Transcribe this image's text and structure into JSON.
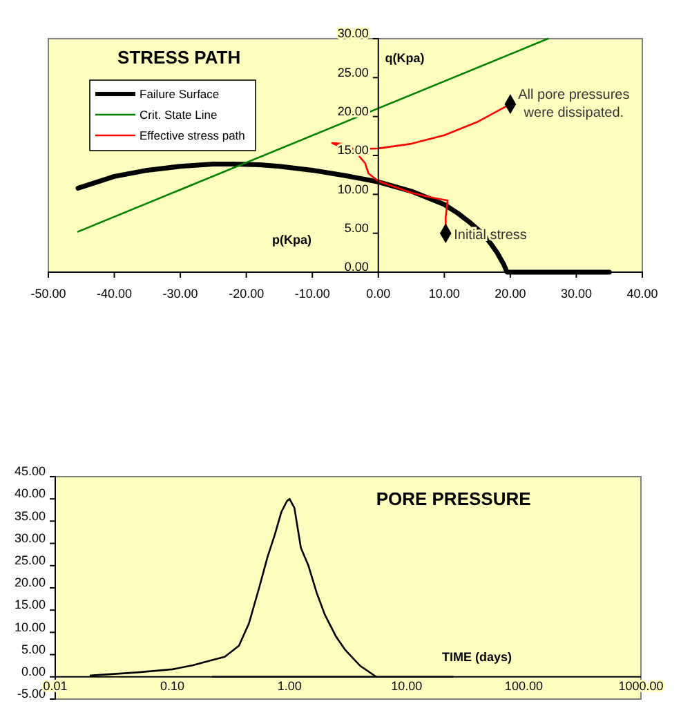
{
  "chart_data": [
    {
      "type": "line",
      "title": "STRESS PATH",
      "xlabel": "p(Kpa)",
      "ylabel": "q(Kpa)",
      "legend": "top left",
      "xlim": [
        -50,
        40
      ],
      "ylim": [
        0,
        30
      ],
      "xticks": [
        {
          "value": -50,
          "label": "-50.00"
        },
        {
          "value": -40,
          "label": "-40.00"
        },
        {
          "value": -30,
          "label": "-30.00"
        },
        {
          "value": -20,
          "label": "-20.00"
        },
        {
          "value": -10,
          "label": "-10.00"
        },
        {
          "value": 0,
          "label": "0.00"
        },
        {
          "value": 10,
          "label": "10.00"
        },
        {
          "value": 20,
          "label": "20.00"
        },
        {
          "value": 30,
          "label": "30.00"
        },
        {
          "value": 40,
          "label": "40.00"
        }
      ],
      "yticks": [
        {
          "value": 0,
          "label": "0.00"
        },
        {
          "value": 5,
          "label": "5.00"
        },
        {
          "value": 10,
          "label": "10.00"
        },
        {
          "value": 15,
          "label": "15.00"
        },
        {
          "value": 20,
          "label": "20.00"
        },
        {
          "value": 25,
          "label": "25.00"
        },
        {
          "value": 30,
          "label": "30.00"
        }
      ],
      "series": [
        {
          "name": "Failure Surface",
          "color": "#000000",
          "x": [
            -45.5,
            -40,
            -35,
            -30,
            -25,
            -22,
            -18,
            -15,
            -10,
            -5,
            0,
            5,
            10,
            12,
            14,
            16,
            17,
            18,
            19,
            19.5,
            25,
            30,
            35
          ],
          "values": [
            10.8,
            12.3,
            13.1,
            13.6,
            13.9,
            13.9,
            13.8,
            13.6,
            13.1,
            12.4,
            11.6,
            10.4,
            8.7,
            7.6,
            6.3,
            4.8,
            3.7,
            2.5,
            1.0,
            0,
            0,
            0,
            0
          ]
        },
        {
          "name": "Crit. State Line",
          "color": "#008000",
          "x": [
            -45.5,
            25.7
          ],
          "values": [
            5.2,
            30
          ]
        },
        {
          "name": "Effective stress path",
          "color": "#ff0000",
          "x": [
            10.2,
            10.2,
            10.5,
            8,
            5,
            3,
            0,
            -1.5,
            -2,
            -3,
            -3.5,
            -4,
            -6,
            -7,
            -5.5,
            -4,
            0,
            5,
            10,
            15,
            20
          ],
          "values": [
            5,
            7,
            9.2,
            9.6,
            10.2,
            10.8,
            11.7,
            12.7,
            14,
            15,
            15.5,
            16,
            16.2,
            16.6,
            16.5,
            15.8,
            15.9,
            16.5,
            17.6,
            19.3,
            21.6
          ]
        },
        {
          "type": "scatter",
          "marker": "diamond",
          "color": "#000000",
          "x": [
            10.2,
            20
          ],
          "values": [
            5,
            21.6
          ]
        }
      ],
      "annotations": [
        {
          "text": "Initial stress",
          "x": 10.2,
          "y": 5
        },
        {
          "text": "All pore pressures were dissipated.",
          "x": 20,
          "y": 21.6
        }
      ]
    },
    {
      "type": "line",
      "title": "PORE PRESSURE",
      "xlabel": "TIME (days)",
      "log": "x",
      "xlim": [
        0.01,
        1000
      ],
      "ylim": [
        -5,
        45
      ],
      "xticks": [
        {
          "value": 0.01,
          "label": "0.01"
        },
        {
          "value": 0.1,
          "label": "0.10"
        },
        {
          "value": 1,
          "label": "1.00"
        },
        {
          "value": 10,
          "label": "10.00"
        },
        {
          "value": 100,
          "label": "100.00"
        },
        {
          "value": 1000,
          "label": "1000.00"
        }
      ],
      "yticks": [
        {
          "value": -5,
          "label": "-5.00"
        },
        {
          "value": 0,
          "label": "0.00"
        },
        {
          "value": 5,
          "label": "5.00"
        },
        {
          "value": 10,
          "label": "10.00"
        },
        {
          "value": 15,
          "label": "15.00"
        },
        {
          "value": 20,
          "label": "20.00"
        },
        {
          "value": 25,
          "label": "25.00"
        },
        {
          "value": 30,
          "label": "30.00"
        },
        {
          "value": 35,
          "label": "35.00"
        },
        {
          "value": 40,
          "label": "40.00"
        },
        {
          "value": 45,
          "label": "45.00"
        }
      ],
      "series": [
        {
          "color": "#000000",
          "x": [
            0.02,
            0.05,
            0.1,
            0.15,
            0.2,
            0.28,
            0.37,
            0.45,
            0.55,
            0.65,
            0.75,
            0.85,
            0.95,
            1.0,
            1.1,
            1.25,
            1.45,
            1.7,
            2.0,
            2.5,
            3.0,
            4.0,
            5.5
          ],
          "values": [
            0.3,
            1,
            1.7,
            2.6,
            3.5,
            4.5,
            7,
            12,
            20,
            27,
            32,
            37,
            39.5,
            40,
            38,
            29,
            25,
            19,
            14,
            9,
            6,
            2.5,
            0
          ]
        },
        {
          "color": "#000000",
          "x": [
            0.22,
            25
          ],
          "values": [
            0,
            0
          ]
        }
      ]
    }
  ]
}
